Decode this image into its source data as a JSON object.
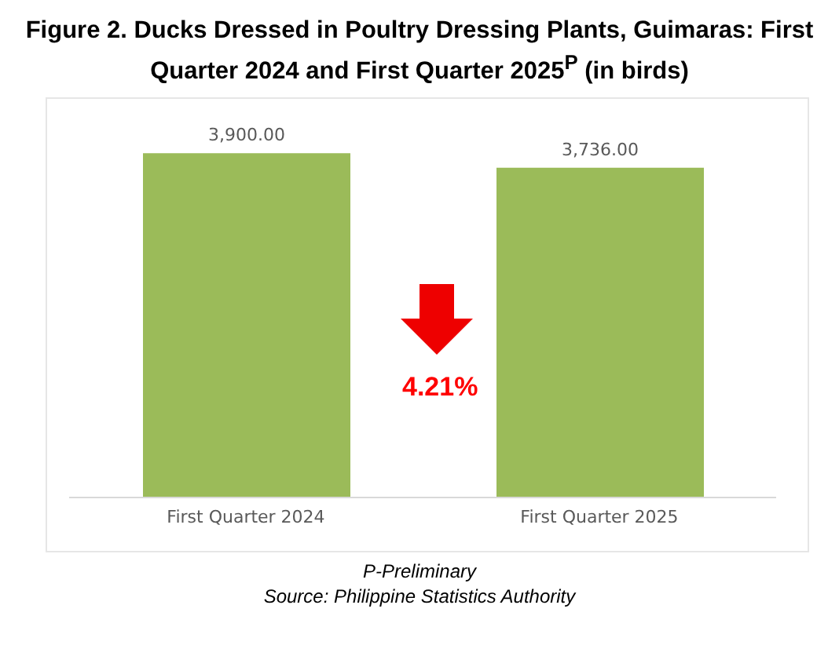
{
  "chart_data": {
    "type": "bar",
    "title": "Figure 2. Ducks Dressed in Poultry Dressing Plants, Guimaras: First Quarter 2024 and First Quarter 2025$^{P}$ (in birds)",
    "categories": [
      "First Quarter 2024",
      "First Quarter 2025"
    ],
    "values": [
      3900,
      3736
    ],
    "value_labels": [
      "3,900.00",
      "3,736.00"
    ],
    "color": "#9bbb59",
    "tick_labels": "x",
    "annotations": [
      "4.21%",
      "P-Preliminary",
      "Source: Philippine Statistics Authority"
    ]
  }
}
